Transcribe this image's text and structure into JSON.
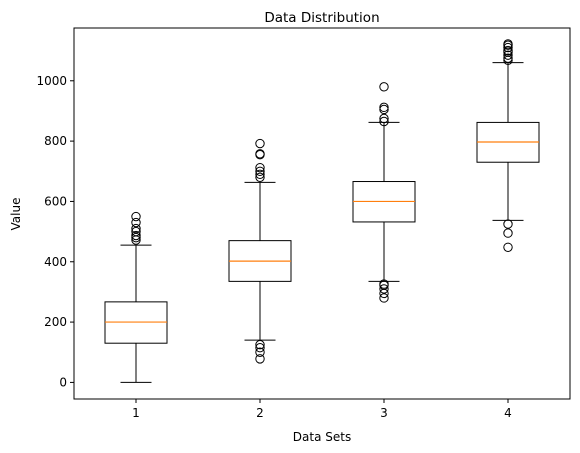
{
  "chart_data": {
    "type": "boxplot",
    "title": "Data Distribution",
    "xlabel": "Data Sets",
    "ylabel": "Value",
    "ylim": [
      -55,
      1175
    ],
    "xlim": [
      0.5,
      4.5
    ],
    "yticks": [
      0,
      200,
      400,
      600,
      800,
      1000
    ],
    "grid": false,
    "colors": {
      "box": "#000000",
      "median": "#ff7f0e",
      "outlier": "#000000",
      "background": "#ffffff"
    },
    "categories": [
      "1",
      "2",
      "3",
      "4"
    ],
    "boxes": [
      {
        "label": "1",
        "whisker_low": 0,
        "q1": 130,
        "median": 200,
        "q3": 267,
        "whisker_high": 455,
        "outliers": [
          472,
          480,
          487,
          500,
          510,
          530,
          550
        ]
      },
      {
        "label": "2",
        "whisker_low": 140,
        "q1": 335,
        "median": 402,
        "q3": 470,
        "whisker_high": 663,
        "outliers": [
          78,
          100,
          115,
          125,
          680,
          690,
          700,
          712,
          755,
          758,
          792
        ]
      },
      {
        "label": "3",
        "whisker_low": 335,
        "q1": 532,
        "median": 600,
        "q3": 666,
        "whisker_high": 862,
        "outliers": [
          280,
          295,
          310,
          322,
          326,
          865,
          875,
          905,
          912,
          980
        ]
      },
      {
        "label": "4",
        "whisker_low": 537,
        "q1": 730,
        "median": 797,
        "q3": 862,
        "whisker_high": 1060,
        "outliers": [
          448,
          495,
          525,
          1068,
          1075,
          1085,
          1095,
          1100,
          1110,
          1118,
          1122
        ]
      }
    ]
  }
}
